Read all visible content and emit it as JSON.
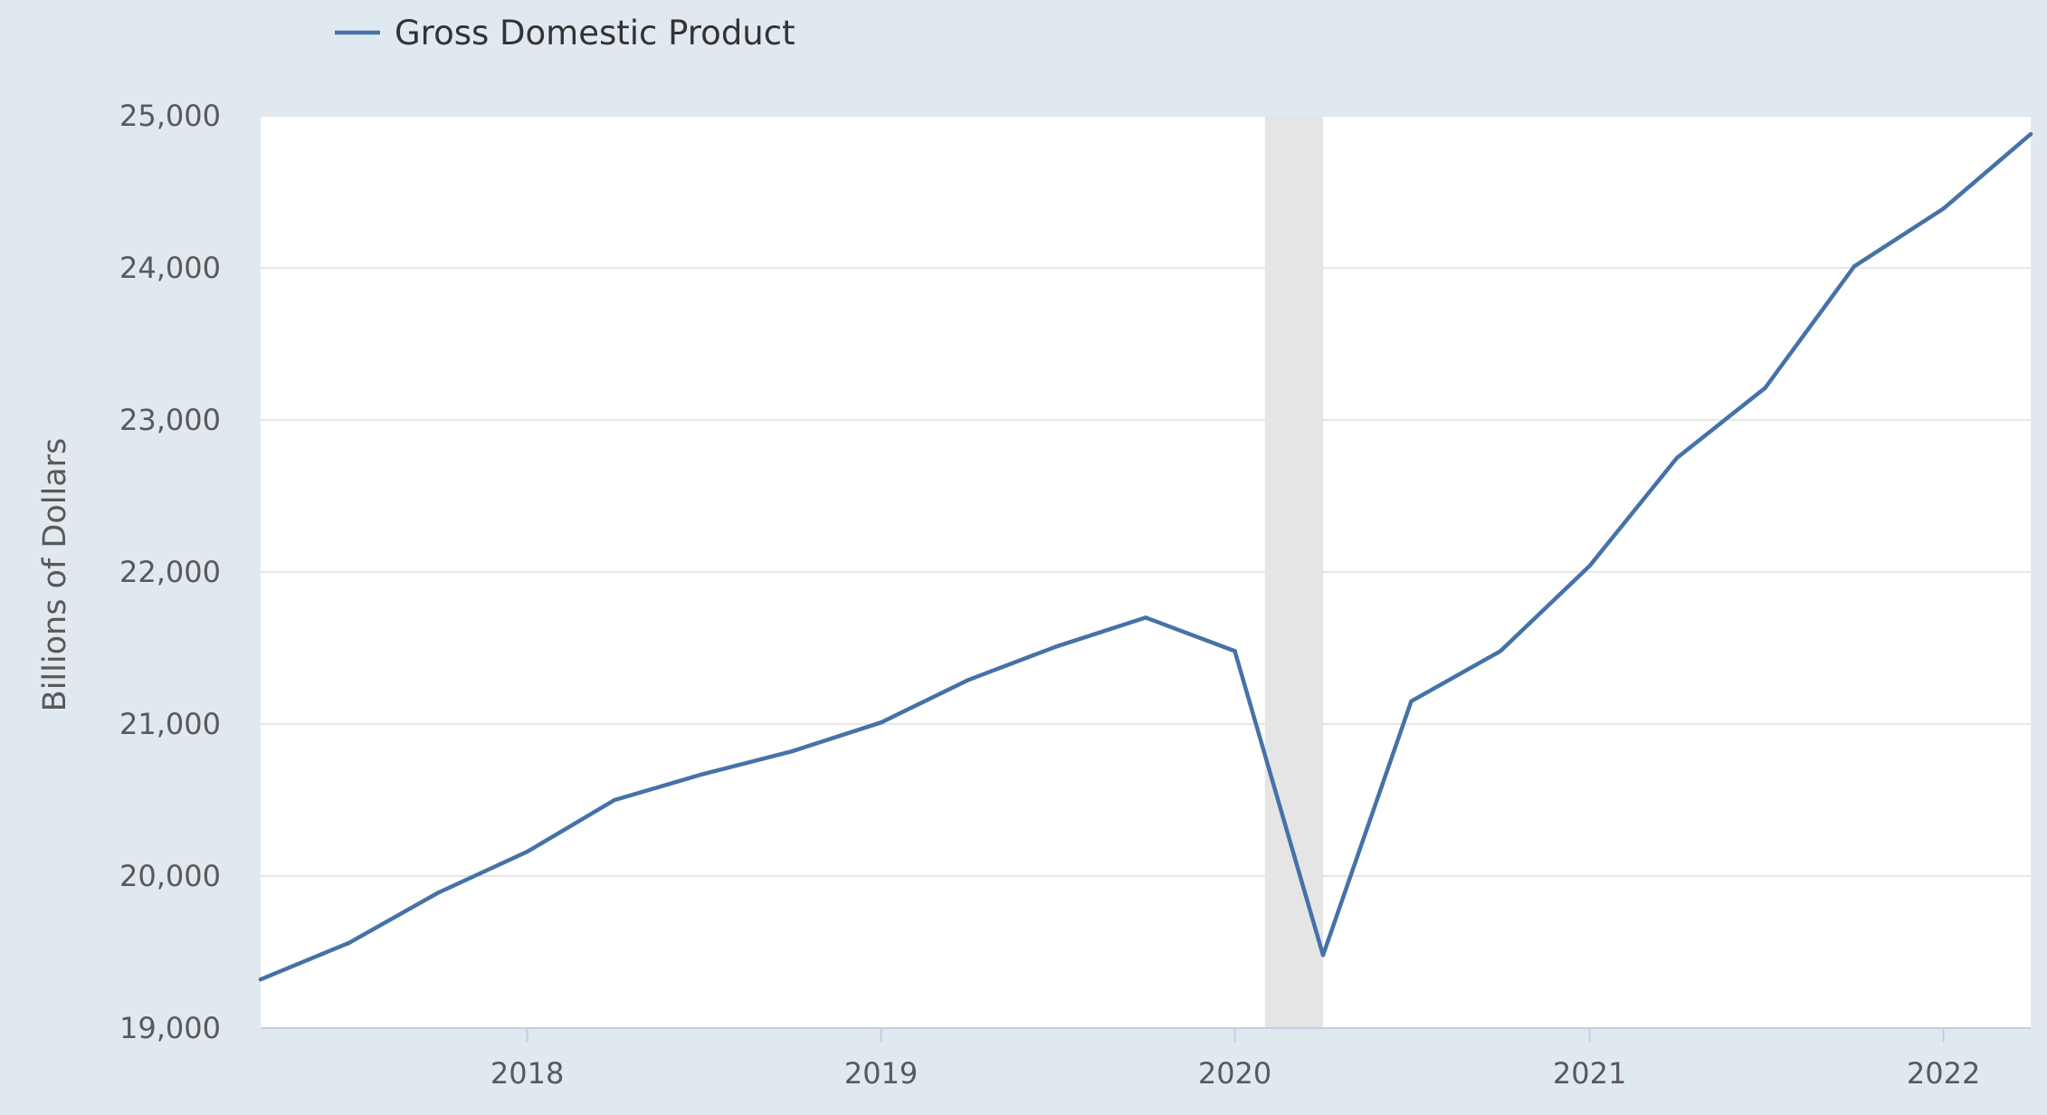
{
  "chart_data": {
    "type": "line",
    "title": "",
    "xlabel": "",
    "ylabel": "Billions of Dollars",
    "ylim": [
      19000,
      25000
    ],
    "xlim": [
      "2017-04-01",
      "2022-04-01"
    ],
    "yticks": [
      "19,000",
      "20,000",
      "21,000",
      "22,000",
      "23,000",
      "24,000",
      "25,000"
    ],
    "ytick_values": [
      19000,
      20000,
      21000,
      22000,
      23000,
      24000,
      25000
    ],
    "xticks": [
      "2018",
      "2019",
      "2020",
      "2021",
      "2022"
    ],
    "xtick_dates": [
      "2018-01-01",
      "2019-01-01",
      "2020-01-01",
      "2021-01-01",
      "2022-01-01"
    ],
    "grid": true,
    "legend_position": "top-left",
    "shaded_regions": [
      {
        "start": "2020-02-01",
        "end": "2020-04-01"
      }
    ],
    "series": [
      {
        "name": "Gross Domestic Product",
        "color": "#4572a7",
        "x": [
          "2017-04-01",
          "2017-07-01",
          "2017-10-01",
          "2018-01-01",
          "2018-04-01",
          "2018-07-01",
          "2018-10-01",
          "2019-01-01",
          "2019-04-01",
          "2019-07-01",
          "2019-10-01",
          "2020-01-01",
          "2020-04-01",
          "2020-07-01",
          "2020-10-01",
          "2021-01-01",
          "2021-04-01",
          "2021-07-01",
          "2021-10-01",
          "2022-01-01",
          "2022-04-01"
        ],
        "values": [
          19320,
          19560,
          19890,
          20160,
          20500,
          20670,
          20820,
          21010,
          21290,
          21510,
          21700,
          21480,
          19480,
          21150,
          21480,
          22040,
          22750,
          23210,
          24010,
          24390,
          24880
        ]
      }
    ]
  },
  "colors": {
    "page_background": "#e1e9f0",
    "plot_background": "#ffffff",
    "gridline": "#e6e6e6",
    "recession_shade": "#e5e5e5",
    "series_line": "#4572a7"
  }
}
